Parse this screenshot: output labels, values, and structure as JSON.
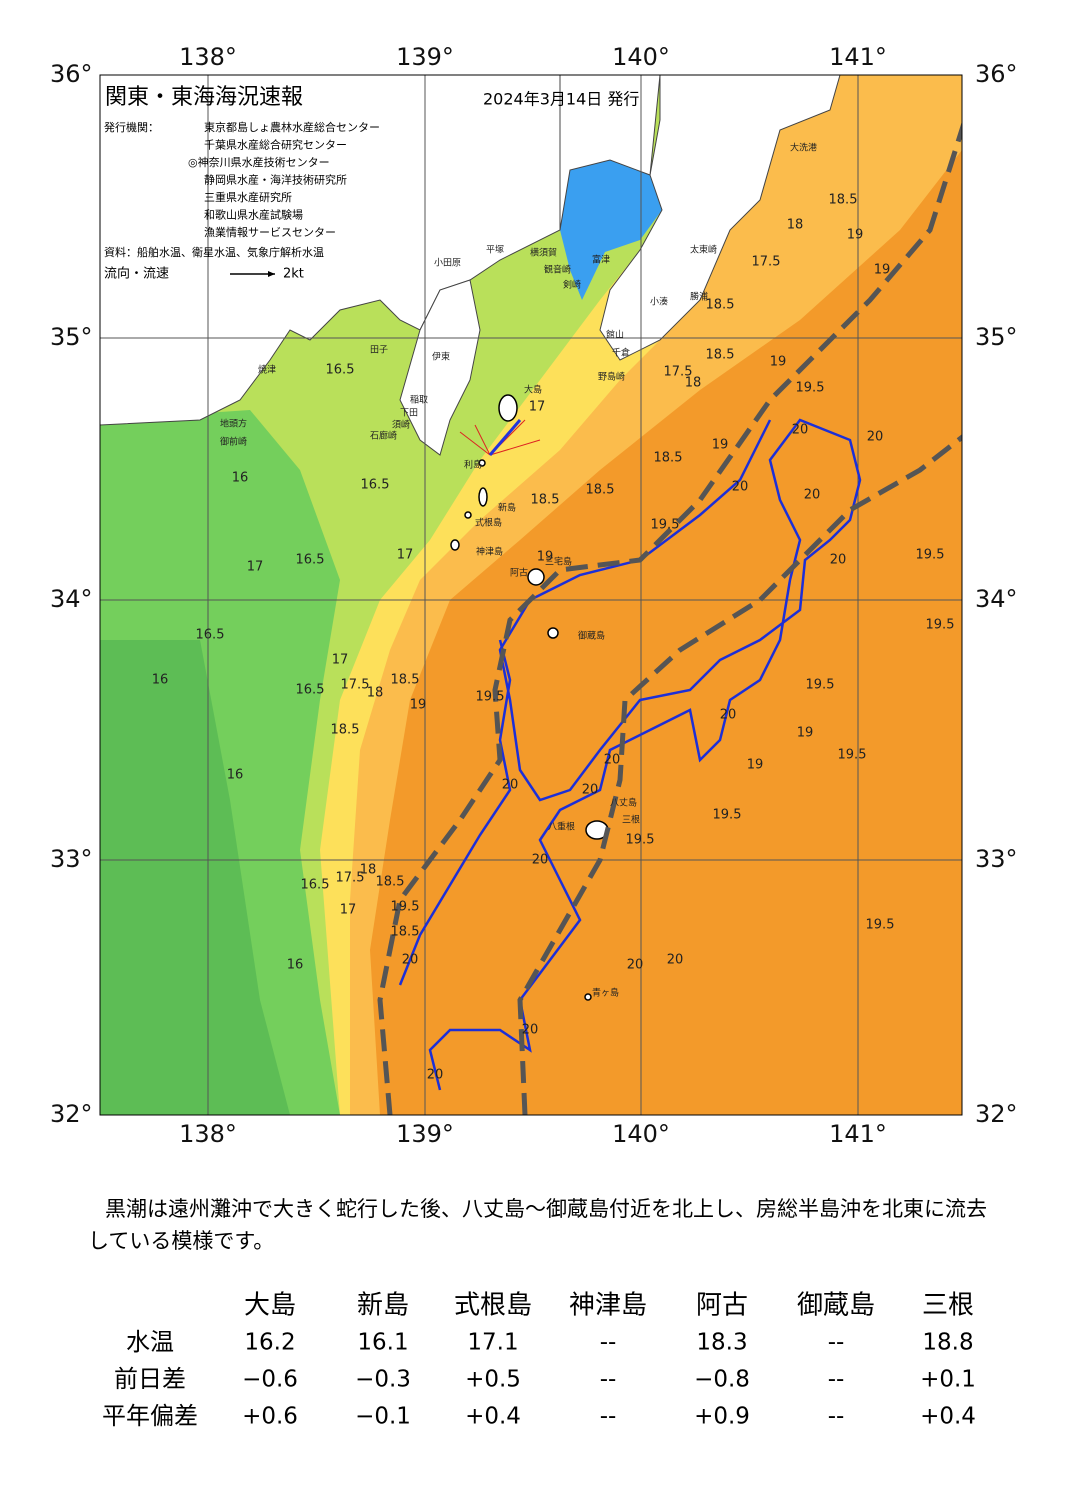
{
  "header": {
    "title": "関東・東海海況速報",
    "date": "2024年3月14日 発行",
    "agencies_label": "発行機関：",
    "agencies": [
      "東京都島しょ農林水産総合センター",
      "千葉県水産総合研究センター",
      "◎神奈川県水産技術センター",
      "静岡県水産・海洋技術研究所",
      "三重県水産研究所",
      "和歌山県水産試験場",
      "漁業情報サービスセンター"
    ],
    "source": "資料：船舶水温、衛星水温、気象庁解析水温",
    "legend_label": "流向・流速",
    "legend_unit": "2kt"
  },
  "map": {
    "lon_labels": [
      "138°",
      "139°",
      "140°",
      "141°"
    ],
    "lat_labels": [
      "36°",
      "35°",
      "34°",
      "33°",
      "32°"
    ],
    "places": [
      "大洗港",
      "太東崎",
      "勝浦",
      "小湊",
      "富津",
      "館山",
      "千倉",
      "野島崎",
      "横須賀",
      "観音崎",
      "剣崎",
      "平塚",
      "小田原",
      "大島",
      "利島",
      "新島",
      "式根島",
      "神津島",
      "三宅島",
      "阿古",
      "御蔵島",
      "八丈島",
      "三根",
      "八重根",
      "青ヶ島",
      "焼津",
      "御前崎",
      "地頭方",
      "田子",
      "伊東",
      "稲取",
      "下田",
      "石廊崎",
      "須崎"
    ],
    "contour_labels": [
      "16.5",
      "16",
      "16.5",
      "16.5",
      "17",
      "17",
      "16.5",
      "16",
      "16.5",
      "17",
      "17.5",
      "18",
      "18.5",
      "19",
      "16",
      "18.5",
      "19.5",
      "20",
      "20",
      "16.5",
      "17.5",
      "18",
      "18.5",
      "19.5",
      "17",
      "16",
      "18.5",
      "20",
      "20",
      "20",
      "20",
      "20",
      "19.5",
      "19.5",
      "19",
      "20",
      "19",
      "19.5",
      "19.5",
      "19.5",
      "20",
      "20",
      "19.5",
      "19",
      "18.5",
      "18.5",
      "20",
      "20",
      "20",
      "20",
      "19.5",
      "19.5",
      "19",
      "18.5",
      "17",
      "17.5",
      "18",
      "18.5",
      "19",
      "19.5",
      "18.5",
      "17.5",
      "18",
      "18.5",
      "19",
      "19",
      "20"
    ]
  },
  "summary": "黒潮は遠州灘沖で大きく蛇行した後、八丈島～御蔵島付近を北上し、房総半島沖を北東に流去している模様です。",
  "table": {
    "columns": [
      "大島",
      "新島",
      "式根島",
      "神津島",
      "阿古",
      "御蔵島",
      "三根"
    ],
    "rows": [
      {
        "label": "水温",
        "cells": [
          "16.2",
          "16.1",
          "17.1",
          "--",
          "18.3",
          "--",
          "18.8"
        ]
      },
      {
        "label": "前日差",
        "cells": [
          "−0.6",
          "−0.3",
          "+0.5",
          "--",
          "−0.8",
          "--",
          "+0.1"
        ]
      },
      {
        "label": "平年偏差",
        "cells": [
          "+0.6",
          "−0.1",
          "+0.4",
          "--",
          "+0.9",
          "--",
          "+0.4"
        ]
      }
    ]
  }
}
